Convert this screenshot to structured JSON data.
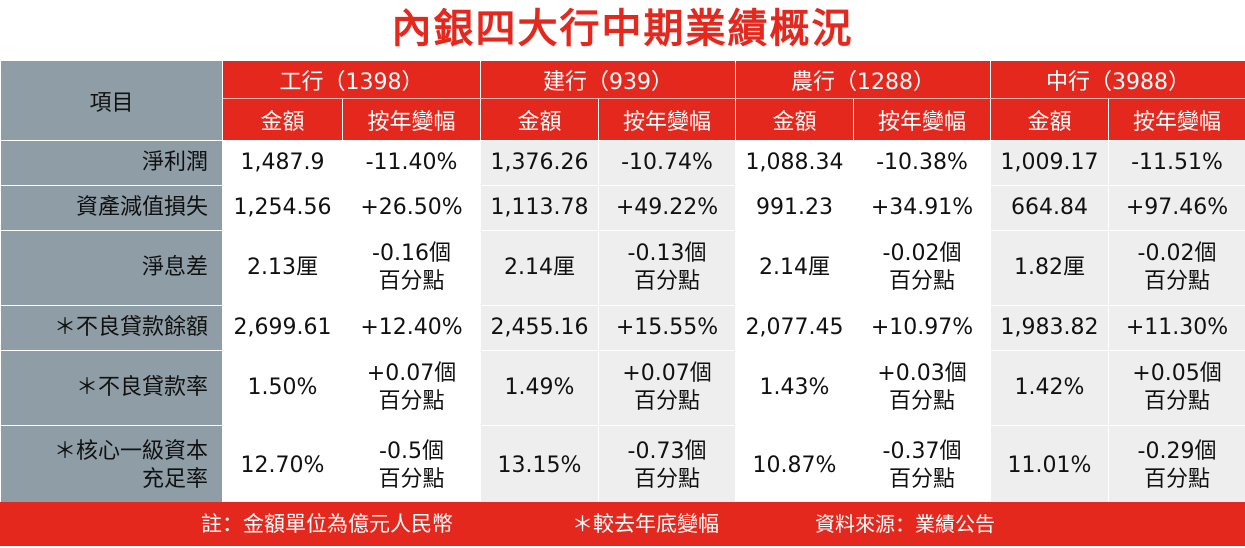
{
  "title": "內銀四大行中期業績概況",
  "header": {
    "item_label": "項目",
    "banks": [
      "工行（1398）",
      "建行（939）",
      "農行（1288）",
      "中行（3988）"
    ],
    "sub_amount": "金額",
    "sub_change": "按年變幅"
  },
  "rows": [
    {
      "label": "淨利潤",
      "cells": [
        "1,487.9",
        "-11.40%",
        "1,376.26",
        "-10.74%",
        "1,088.34",
        "-10.38%",
        "1,009.17",
        "-11.51%"
      ]
    },
    {
      "label": "資產減值損失",
      "cells": [
        "1,254.56",
        "+26.50%",
        "1,113.78",
        "+49.22%",
        "991.23",
        "+34.91%",
        "664.84",
        "+97.46%"
      ]
    },
    {
      "label": "淨息差",
      "cells": [
        "2.13厘",
        "-0.16個\n百分點",
        "2.14厘",
        "-0.13個\n百分點",
        "2.14厘",
        "-0.02個\n百分點",
        "1.82厘",
        "-0.02個\n百分點"
      ]
    },
    {
      "label": "＊不良貸款餘額",
      "cells": [
        "2,699.61",
        "+12.40%",
        "2,455.16",
        "+15.55%",
        "2,077.45",
        "+10.97%",
        "1,983.82",
        "+11.30%"
      ]
    },
    {
      "label": "＊不良貸款率",
      "cells": [
        "1.50%",
        "+0.07個\n百分點",
        "1.49%",
        "+0.07個\n百分點",
        "1.43%",
        "+0.03個\n百分點",
        "1.42%",
        "+0.05個\n百分點"
      ]
    },
    {
      "label": "＊核心一級資本\n充足率",
      "cells": [
        "12.70%",
        "-0.5個\n百分點",
        "13.15%",
        "-0.73個\n百分點",
        "10.87%",
        "-0.37個\n百分點",
        "11.01%",
        "-0.29個\n百分點"
      ]
    }
  ],
  "footer": {
    "note": "註：金額單位為億元人民幣",
    "asterisk_note": "＊較去年底變幅",
    "source": "資料來源：業績公告"
  },
  "colors": {
    "accent_red": "#e5281e",
    "label_gray": "#8e9da6",
    "alt_column_gray": "#eeeeee"
  }
}
